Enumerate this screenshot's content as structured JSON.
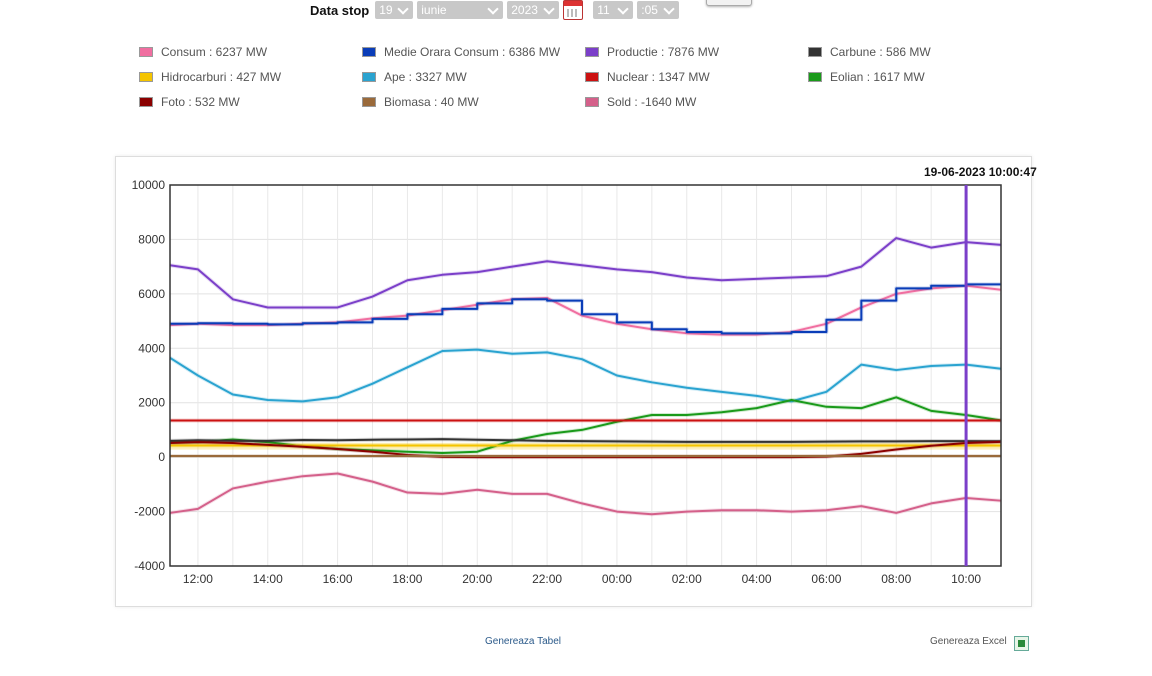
{
  "controls": {
    "label": "Data stop",
    "day": "19",
    "month": "iunie",
    "year": "2023",
    "hour": "11",
    "minute": ":05"
  },
  "legend": [
    {
      "label": "Consum : 6237 MW",
      "color": "#f06ea0"
    },
    {
      "label": "Medie Orara Consum : 6386 MW",
      "color": "#0a3db8"
    },
    {
      "label": "Productie : 7876 MW",
      "color": "#7b3fc9"
    },
    {
      "label": "Carbune : 586 MW",
      "color": "#333333"
    },
    {
      "label": "Hidrocarburi : 427 MW",
      "color": "#f4c400"
    },
    {
      "label": "Ape : 3327 MW",
      "color": "#2aa3d0"
    },
    {
      "label": "Nuclear : 1347 MW",
      "color": "#cc1111"
    },
    {
      "label": "Eolian : 1617 MW",
      "color": "#1a9a1a"
    },
    {
      "label": "Foto : 532 MW",
      "color": "#8b0000"
    },
    {
      "label": "Biomasa : 40 MW",
      "color": "#9a6a3a"
    },
    {
      "label": "Sold : -1640 MW",
      "color": "#d4608a"
    }
  ],
  "timestamp": "19-06-2023 10:00:47",
  "footer": {
    "table_link": "Genereaza Tabel",
    "excel_link": "Genereaza Excel"
  },
  "chart_data": {
    "type": "line",
    "ylim": [
      -4000,
      10000
    ],
    "yticks": [
      "10000",
      "8000",
      "6000",
      "4000",
      "2000",
      "0",
      "-2000",
      "-4000"
    ],
    "xticks": [
      "12:00",
      "14:00",
      "16:00",
      "18:00",
      "20:00",
      "22:00",
      "00:00",
      "02:00",
      "04:00",
      "06:00",
      "08:00",
      "10:00"
    ],
    "x_hours": [
      11.2,
      12,
      13,
      14,
      15,
      16,
      17,
      18,
      19,
      20,
      21,
      22,
      23,
      24,
      25,
      26,
      27,
      28,
      29,
      30,
      31,
      32,
      33,
      34,
      35
    ],
    "series": [
      {
        "name": "Productie",
        "color": "#7b3fc9",
        "values": [
          7050,
          6900,
          5800,
          5500,
          5500,
          5500,
          5900,
          6500,
          6700,
          6800,
          7000,
          7200,
          7050,
          6900,
          6800,
          6600,
          6500,
          6550,
          6600,
          6650,
          7000,
          8050,
          7700,
          7900,
          7800
        ]
      },
      {
        "name": "Consum",
        "color": "#f06ea0",
        "values": [
          4850,
          4900,
          4850,
          4850,
          4900,
          4950,
          5100,
          5200,
          5400,
          5600,
          5800,
          5850,
          5200,
          4900,
          4700,
          4550,
          4500,
          4500,
          4600,
          4900,
          5500,
          6000,
          6200,
          6300,
          6150
        ]
      },
      {
        "name": "Medie Orara Consum",
        "color": "#0a3db8",
        "step": true,
        "values": [
          4900,
          4920,
          4900,
          4880,
          4920,
          4950,
          5080,
          5250,
          5450,
          5650,
          5800,
          5750,
          5250,
          4950,
          4700,
          4600,
          4550,
          4550,
          4600,
          5050,
          5750,
          6200,
          6300,
          6350,
          6350
        ]
      },
      {
        "name": "Ape",
        "color": "#2aa3d0",
        "values": [
          3650,
          3000,
          2300,
          2100,
          2050,
          2200,
          2700,
          3300,
          3900,
          3950,
          3800,
          3850,
          3600,
          3000,
          2750,
          2550,
          2400,
          2250,
          2050,
          2400,
          3400,
          3200,
          3350,
          3400,
          3250
        ]
      },
      {
        "name": "Eolian",
        "color": "#1a9a1a",
        "values": [
          550,
          550,
          650,
          550,
          400,
          300,
          250,
          200,
          150,
          200,
          600,
          850,
          1000,
          1300,
          1550,
          1550,
          1650,
          1800,
          2100,
          1850,
          1800,
          2200,
          1700,
          1550,
          1350
        ]
      },
      {
        "name": "Nuclear",
        "color": "#cc1111",
        "values": [
          1347,
          1347,
          1347,
          1347,
          1347,
          1347,
          1347,
          1347,
          1347,
          1347,
          1347,
          1347,
          1347,
          1347,
          1347,
          1347,
          1347,
          1347,
          1347,
          1347,
          1347,
          1347,
          1347,
          1347,
          1347
        ]
      },
      {
        "name": "Carbune",
        "color": "#333333",
        "values": [
          600,
          620,
          600,
          600,
          630,
          620,
          640,
          650,
          660,
          640,
          620,
          600,
          590,
          580,
          570,
          560,
          560,
          560,
          560,
          570,
          580,
          580,
          590,
          590,
          586
        ]
      },
      {
        "name": "Hidrocarburi",
        "color": "#f4c400",
        "values": [
          427,
          427,
          427,
          427,
          427,
          427,
          427,
          427,
          427,
          427,
          427,
          427,
          427,
          427,
          427,
          427,
          427,
          427,
          427,
          427,
          427,
          427,
          427,
          427,
          427
        ]
      },
      {
        "name": "Foto",
        "color": "#8b0000",
        "values": [
          520,
          550,
          520,
          450,
          380,
          300,
          200,
          80,
          10,
          0,
          0,
          0,
          0,
          0,
          0,
          0,
          0,
          0,
          0,
          20,
          120,
          280,
          420,
          520,
          560
        ]
      },
      {
        "name": "Biomasa",
        "color": "#9a6a3a",
        "values": [
          40,
          40,
          40,
          40,
          40,
          40,
          40,
          40,
          40,
          40,
          40,
          40,
          40,
          40,
          40,
          40,
          40,
          40,
          40,
          40,
          40,
          40,
          40,
          40,
          40
        ]
      },
      {
        "name": "Sold",
        "color": "#d4608a",
        "values": [
          -2050,
          -1900,
          -1150,
          -900,
          -700,
          -600,
          -900,
          -1300,
          -1350,
          -1200,
          -1350,
          -1350,
          -1700,
          -2000,
          -2100,
          -2000,
          -1950,
          -1950,
          -2000,
          -1950,
          -1800,
          -2050,
          -1700,
          -1500,
          -1600
        ]
      }
    ],
    "marker_hour": 34.0
  }
}
